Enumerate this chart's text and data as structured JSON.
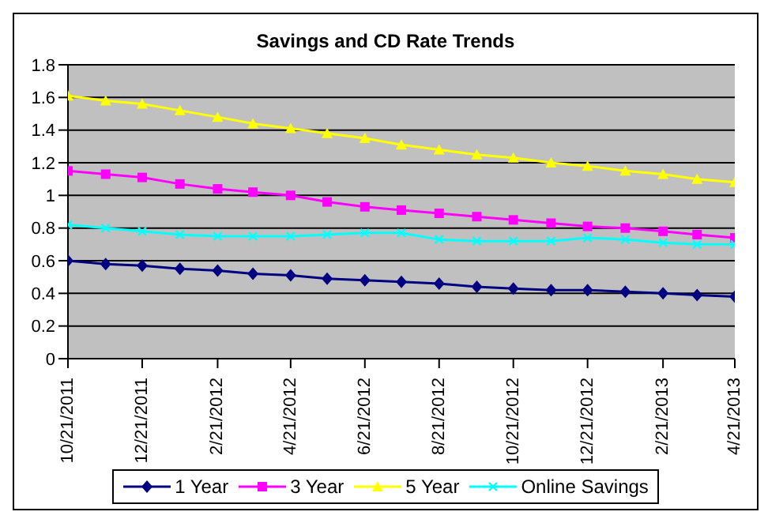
{
  "chart_data": {
    "type": "line",
    "title": "Savings and CD Rate Trends",
    "x": [
      "2011-10-21",
      "2011-11-21",
      "2011-12-21",
      "2012-01-21",
      "2012-02-21",
      "2012-03-21",
      "2012-04-21",
      "2012-05-21",
      "2012-06-21",
      "2012-07-21",
      "2012-08-21",
      "2012-09-21",
      "2012-10-21",
      "2012-11-21",
      "2012-12-21",
      "2013-01-21",
      "2013-02-21",
      "2013-03-21",
      "2013-04-21"
    ],
    "series": [
      {
        "name": "1 Year",
        "color": "#000080",
        "marker": "diamond",
        "values": [
          0.6,
          0.58,
          0.57,
          0.55,
          0.54,
          0.52,
          0.51,
          0.49,
          0.48,
          0.47,
          0.46,
          0.44,
          0.43,
          0.42,
          0.42,
          0.41,
          0.4,
          0.39,
          0.38
        ]
      },
      {
        "name": "3 Year",
        "color": "#ff00ff",
        "marker": "square",
        "values": [
          1.15,
          1.13,
          1.11,
          1.07,
          1.04,
          1.02,
          1.0,
          0.96,
          0.93,
          0.91,
          0.89,
          0.87,
          0.85,
          0.83,
          0.81,
          0.8,
          0.78,
          0.76,
          0.74
        ]
      },
      {
        "name": "5 Year",
        "color": "#ffff00",
        "marker": "triangle",
        "values": [
          1.61,
          1.58,
          1.56,
          1.52,
          1.48,
          1.44,
          1.41,
          1.38,
          1.35,
          1.31,
          1.28,
          1.25,
          1.23,
          1.2,
          1.18,
          1.15,
          1.13,
          1.1,
          1.08
        ]
      },
      {
        "name": "Online Savings",
        "color": "#00ffff",
        "marker": "cross",
        "values": [
          0.82,
          0.8,
          0.78,
          0.76,
          0.75,
          0.75,
          0.75,
          0.76,
          0.77,
          0.77,
          0.73,
          0.72,
          0.72,
          0.72,
          0.74,
          0.73,
          0.71,
          0.7,
          0.7
        ]
      }
    ],
    "xlim": [
      "2011-10-21",
      "2013-04-21"
    ],
    "xticks": [
      {
        "value": "2011-10-21",
        "label": "10/21/2011"
      },
      {
        "value": "2011-12-21",
        "label": "12/21/2011"
      },
      {
        "value": "2012-02-21",
        "label": "2/21/2012"
      },
      {
        "value": "2012-04-21",
        "label": "4/21/2012"
      },
      {
        "value": "2012-06-21",
        "label": "6/21/2012"
      },
      {
        "value": "2012-08-21",
        "label": "8/21/2012"
      },
      {
        "value": "2012-10-21",
        "label": "10/21/2012"
      },
      {
        "value": "2012-12-21",
        "label": "12/21/2012"
      },
      {
        "value": "2013-02-21",
        "label": "2/21/2013"
      },
      {
        "value": "2013-04-21",
        "label": "4/21/2013"
      }
    ],
    "ylim": [
      0,
      1.8
    ],
    "yticks": [
      0,
      0.2,
      0.4,
      0.6,
      0.8,
      1,
      1.2,
      1.4,
      1.6,
      1.8
    ],
    "grid": "y",
    "legend": "bottom",
    "line_style": "solid"
  }
}
